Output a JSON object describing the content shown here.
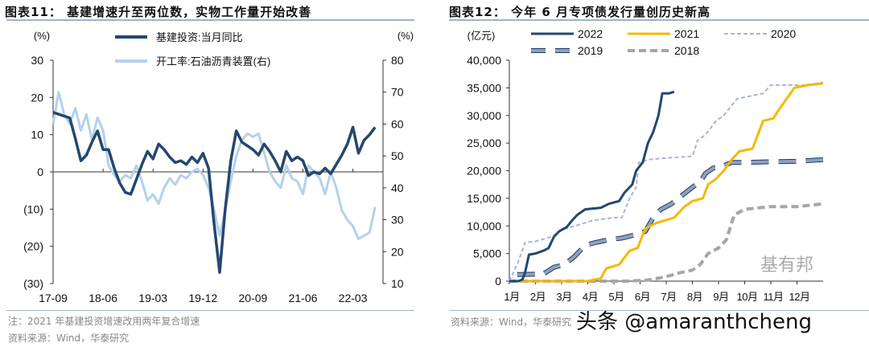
{
  "left": {
    "title": "图表11：  基建增速升至两位数，实物工作量开始改善",
    "note": "注：2021 年基建投资增速改用两年复合增速",
    "source": "资料来源：Wind，华泰研究"
  },
  "right": {
    "title": "图表12：  今年 6 月专项债发行量创历史新高",
    "source": "资料来源：Wind，华泰研究"
  },
  "watermark": {
    "text": "头条 @amaranthcheng",
    "logo_text": "基有邦"
  },
  "chart_data": [
    {
      "type": "line",
      "ylabel_left": "(%)",
      "ylabel_right": "(%)",
      "ylim_left": [
        -30,
        30
      ],
      "ylim_right": [
        10,
        80
      ],
      "yticks_left": [
        "30",
        "20",
        "10",
        "0",
        "(10)",
        "(20)",
        "(30)"
      ],
      "yticks_left_values": [
        30,
        20,
        10,
        0,
        -10,
        -20,
        -30
      ],
      "yticks_right": [
        "80",
        "70",
        "60",
        "50",
        "40",
        "30",
        "20",
        "10"
      ],
      "yticks_right_values": [
        80,
        70,
        60,
        50,
        40,
        30,
        20,
        10
      ],
      "xticks": [
        "17-09",
        "18-06",
        "19-03",
        "19-12",
        "20-09",
        "21-06",
        "22-03"
      ],
      "legend_placement": "top",
      "grid": false,
      "series": [
        {
          "name": "基建投资:当月同比",
          "axis": "left",
          "color": "#24476e",
          "points": [
            [
              "17-09",
              16
            ],
            [
              "17-10",
              15.5
            ],
            [
              "17-11",
              15
            ],
            [
              "17-12",
              14.5
            ],
            [
              "18-01",
              9
            ],
            [
              "18-02",
              3
            ],
            [
              "18-03",
              4.5
            ],
            [
              "18-04",
              8
            ],
            [
              "18-05",
              11
            ],
            [
              "18-06",
              6
            ],
            [
              "18-07",
              6
            ],
            [
              "18-08",
              1
            ],
            [
              "18-09",
              -3
            ],
            [
              "18-10",
              -5.5
            ],
            [
              "18-11",
              -6
            ],
            [
              "18-12",
              -2
            ],
            [
              "19-01",
              2
            ],
            [
              "19-02",
              5.5
            ],
            [
              "19-03",
              3.5
            ],
            [
              "19-04",
              7.5
            ],
            [
              "19-05",
              6
            ],
            [
              "19-06",
              4
            ],
            [
              "19-07",
              2.5
            ],
            [
              "19-08",
              3
            ],
            [
              "19-09",
              2
            ],
            [
              "19-10",
              4
            ],
            [
              "19-11",
              2.5
            ],
            [
              "19-12",
              5
            ],
            [
              "20-01",
              1
            ],
            [
              "20-02",
              -14
            ],
            [
              "20-03",
              -27
            ],
            [
              "20-04",
              -10
            ],
            [
              "20-05",
              3
            ],
            [
              "20-06",
              11
            ],
            [
              "20-07",
              8
            ],
            [
              "20-08",
              7
            ],
            [
              "20-09",
              6
            ],
            [
              "20-10",
              4.5
            ],
            [
              "20-11",
              7.5
            ],
            [
              "20-12",
              5.5
            ],
            [
              "21-01",
              3
            ],
            [
              "21-02",
              0
            ],
            [
              "21-03",
              5.5
            ],
            [
              "21-04",
              3
            ],
            [
              "21-05",
              4
            ],
            [
              "21-06",
              3
            ],
            [
              "21-07",
              -1
            ],
            [
              "21-08",
              0
            ],
            [
              "21-09",
              -0.5
            ],
            [
              "21-10",
              1
            ],
            [
              "21-11",
              -0.5
            ],
            [
              "21-12",
              2
            ],
            [
              "22-01",
              4.5
            ],
            [
              "22-02",
              7.5
            ],
            [
              "22-03",
              12
            ],
            [
              "22-04",
              5
            ],
            [
              "22-05",
              8.5
            ],
            [
              "22-06",
              10
            ],
            [
              "22-07",
              12
            ]
          ]
        },
        {
          "name": "开工率:石油沥青装置(右)",
          "axis": "right",
          "color": "#b4d1ec",
          "points": [
            [
              "17-09",
              60
            ],
            [
              "17-10",
              70
            ],
            [
              "17-11",
              63
            ],
            [
              "17-12",
              60
            ],
            [
              "18-01",
              65
            ],
            [
              "18-02",
              58
            ],
            [
              "18-03",
              63
            ],
            [
              "18-04",
              55
            ],
            [
              "18-05",
              62
            ],
            [
              "18-06",
              58
            ],
            [
              "18-07",
              47
            ],
            [
              "18-08",
              44
            ],
            [
              "18-09",
              42
            ],
            [
              "18-10",
              44
            ],
            [
              "18-11",
              43
            ],
            [
              "18-12",
              47
            ],
            [
              "19-01",
              42
            ],
            [
              "19-02",
              36
            ],
            [
              "19-03",
              38
            ],
            [
              "19-04",
              35
            ],
            [
              "19-05",
              40
            ],
            [
              "19-06",
              43
            ],
            [
              "19-07",
              41
            ],
            [
              "19-08",
              44
            ],
            [
              "19-09",
              43
            ],
            [
              "19-10",
              45
            ],
            [
              "19-11",
              46
            ],
            [
              "19-12",
              44
            ],
            [
              "20-01",
              40
            ],
            [
              "20-02",
              33
            ],
            [
              "20-03",
              25
            ],
            [
              "20-04",
              33
            ],
            [
              "20-05",
              42
            ],
            [
              "20-06",
              50
            ],
            [
              "20-07",
              55
            ],
            [
              "20-08",
              57
            ],
            [
              "20-09",
              56
            ],
            [
              "20-10",
              57
            ],
            [
              "20-11",
              51
            ],
            [
              "20-12",
              45
            ],
            [
              "21-01",
              42
            ],
            [
              "21-02",
              40
            ],
            [
              "21-03",
              47
            ],
            [
              "21-04",
              43
            ],
            [
              "21-05",
              42
            ],
            [
              "21-06",
              38
            ],
            [
              "21-07",
              47
            ],
            [
              "21-08",
              45
            ],
            [
              "21-09",
              43
            ],
            [
              "21-10",
              38
            ],
            [
              "21-11",
              45
            ],
            [
              "21-12",
              40
            ],
            [
              "22-01",
              33
            ],
            [
              "22-02",
              30
            ],
            [
              "22-03",
              28
            ],
            [
              "22-04",
              24
            ],
            [
              "22-05",
              25
            ],
            [
              "22-06",
              26
            ],
            [
              "22-07",
              34
            ]
          ]
        }
      ]
    },
    {
      "type": "line",
      "ylabel": "(亿元)",
      "ylim": [
        0,
        40000
      ],
      "yticks": [
        "40,000",
        "35,000",
        "30,000",
        "25,000",
        "20,000",
        "15,000",
        "10,000",
        "5,000",
        "0"
      ],
      "yticks_values": [
        40000,
        35000,
        30000,
        25000,
        20000,
        15000,
        10000,
        5000,
        0
      ],
      "xticks": [
        "1月",
        "2月",
        "3月",
        "4月",
        "5月",
        "6月",
        "7月",
        "8月",
        "9月",
        "10月",
        "11月",
        "12月"
      ],
      "xlim_months": [
        1,
        13
      ],
      "legend_placement": "top",
      "grid": false,
      "series": [
        {
          "name": "2022",
          "color": "#24476e",
          "style": "solid",
          "points": [
            [
              1,
              0
            ],
            [
              1.35,
              0
            ],
            [
              1.5,
              300
            ],
            [
              1.6,
              1500
            ],
            [
              1.75,
              4800
            ],
            [
              2,
              5000
            ],
            [
              2.3,
              5500
            ],
            [
              2.5,
              6000
            ],
            [
              2.7,
              8000
            ],
            [
              2.9,
              9000
            ],
            [
              3.2,
              9800
            ],
            [
              3.4,
              11000
            ],
            [
              3.6,
              12000
            ],
            [
              3.9,
              13000
            ],
            [
              4.5,
              13300
            ],
            [
              4.8,
              14000
            ],
            [
              5.2,
              14500
            ],
            [
              5.4,
              16000
            ],
            [
              5.7,
              17500
            ],
            [
              5.85,
              20000
            ],
            [
              6.1,
              21500
            ],
            [
              6.3,
              25000
            ],
            [
              6.5,
              27000
            ],
            [
              6.7,
              30000
            ],
            [
              6.85,
              34000
            ],
            [
              7.1,
              34000
            ],
            [
              7.3,
              34300
            ]
          ]
        },
        {
          "name": "2021",
          "color": "#f5b800",
          "style": "solid",
          "points": [
            [
              1,
              0
            ],
            [
              4,
              0
            ],
            [
              4.5,
              500
            ],
            [
              4.7,
              2300
            ],
            [
              5.2,
              3000
            ],
            [
              5.6,
              5500
            ],
            [
              5.9,
              6000
            ],
            [
              6.2,
              9500
            ],
            [
              6.6,
              10500
            ],
            [
              7.3,
              11500
            ],
            [
              7.7,
              13500
            ],
            [
              8.0,
              14500
            ],
            [
              8.4,
              15000
            ],
            [
              8.6,
              17500
            ],
            [
              8.9,
              18500
            ],
            [
              9.2,
              20000
            ],
            [
              9.5,
              22000
            ],
            [
              9.8,
              23500
            ],
            [
              10.3,
              24000
            ],
            [
              10.7,
              29000
            ],
            [
              11.1,
              29500
            ],
            [
              11.3,
              31000
            ],
            [
              11.6,
              33000
            ],
            [
              11.9,
              35000
            ],
            [
              12.4,
              35500
            ],
            [
              13,
              35800
            ]
          ]
        },
        {
          "name": "2020",
          "color": "#aab3dd",
          "style": "dashed-thin",
          "points": [
            [
              1,
              0
            ],
            [
              1.3,
              3000
            ],
            [
              1.6,
              7000
            ],
            [
              2.0,
              7200
            ],
            [
              2.6,
              8000
            ],
            [
              3.0,
              9300
            ],
            [
              3.5,
              10000
            ],
            [
              4.2,
              11000
            ],
            [
              5.0,
              11500
            ],
            [
              5.3,
              11500
            ],
            [
              5.6,
              15000
            ],
            [
              5.85,
              17000
            ],
            [
              5.95,
              21500
            ],
            [
              6.3,
              22000
            ],
            [
              7.0,
              22300
            ],
            [
              8.0,
              22600
            ],
            [
              8.2,
              25500
            ],
            [
              8.5,
              26500
            ],
            [
              8.9,
              29000
            ],
            [
              9.2,
              30000
            ],
            [
              9.7,
              33000
            ],
            [
              10.2,
              33500
            ],
            [
              10.7,
              34000
            ],
            [
              11.0,
              35500
            ],
            [
              12.3,
              35500
            ],
            [
              13,
              36000
            ]
          ]
        },
        {
          "name": "2019",
          "color": "#8fa0c0",
          "style": "long-dash-outlined",
          "points": [
            [
              1.3,
              1200
            ],
            [
              2.3,
              1300
            ],
            [
              2.7,
              2500
            ],
            [
              3.1,
              3000
            ],
            [
              3.5,
              4500
            ],
            [
              3.9,
              6500
            ],
            [
              4.3,
              7000
            ],
            [
              4.8,
              7500
            ],
            [
              5.3,
              7800
            ],
            [
              5.9,
              8500
            ],
            [
              6.2,
              9000
            ],
            [
              6.5,
              11500
            ],
            [
              6.8,
              13000
            ],
            [
              7.2,
              14000
            ],
            [
              7.6,
              15500
            ],
            [
              8.0,
              17000
            ],
            [
              8.3,
              18000
            ],
            [
              8.5,
              19500
            ],
            [
              8.8,
              20500
            ],
            [
              9.0,
              20500
            ],
            [
              9.5,
              21500
            ],
            [
              10,
              21500
            ],
            [
              12,
              21700
            ],
            [
              13,
              22000
            ]
          ]
        },
        {
          "name": "2018",
          "color": "#a6a6a6",
          "style": "dashed-thick",
          "points": [
            [
              1,
              0
            ],
            [
              5.5,
              0
            ],
            [
              6.3,
              200
            ],
            [
              7.0,
              800
            ],
            [
              7.5,
              1500
            ],
            [
              8.0,
              2000
            ],
            [
              8.3,
              3000
            ],
            [
              8.6,
              5000
            ],
            [
              9.0,
              6000
            ],
            [
              9.3,
              7500
            ],
            [
              9.6,
              12000
            ],
            [
              10,
              13000
            ],
            [
              11,
              13500
            ],
            [
              12,
              13500
            ],
            [
              13,
              14000
            ]
          ]
        }
      ]
    }
  ]
}
